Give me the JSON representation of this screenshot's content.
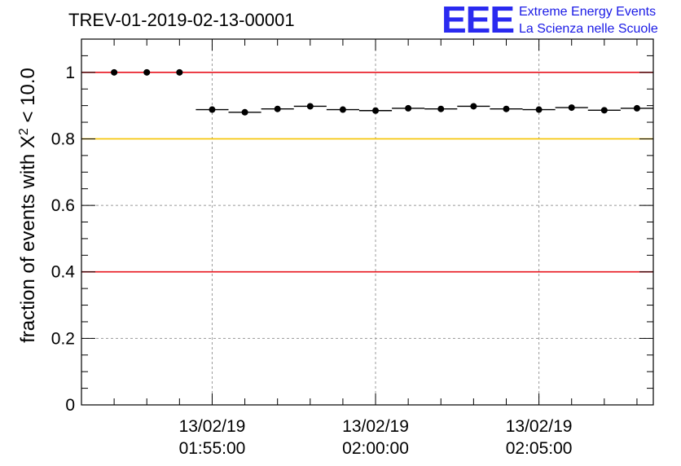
{
  "chart_data": {
    "type": "scatter",
    "title": "TREV-01-2019-02-13-00001",
    "ylabel_prefix": "fraction of events with ",
    "ylabel_symbol": "X",
    "ylabel_sup": "2",
    "ylabel_suffix": " < 10.0",
    "xlabel": "",
    "xlim": [
      "01:51:00",
      "02:08:30"
    ],
    "ylim": [
      0,
      1.1
    ],
    "grid": true,
    "x_ticks": [
      {
        "date": "13/02/19",
        "time": "01:55:00"
      },
      {
        "date": "13/02/19",
        "time": "02:00:00"
      },
      {
        "date": "13/02/19",
        "time": "02:05:00"
      }
    ],
    "y_ticks": [
      "0",
      "0.2",
      "0.4",
      "0.6",
      "0.8",
      "1"
    ],
    "reference_lines": [
      {
        "y": 1.0,
        "color": "#e8141e"
      },
      {
        "y": 0.8,
        "color": "#f5c400"
      },
      {
        "y": 0.4,
        "color": "#e8141e"
      }
    ],
    "series": [
      {
        "x": [
          "01:52:00",
          "01:53:00",
          "01:54:00",
          "01:55:00",
          "01:56:00",
          "01:57:00",
          "01:58:00",
          "01:59:00",
          "02:00:00",
          "02:01:00",
          "02:02:00",
          "02:03:00",
          "02:04:00",
          "02:05:00",
          "02:06:00",
          "02:07:00",
          "02:08:00"
        ],
        "y": [
          1.0,
          1.0,
          1.0,
          0.888,
          0.88,
          0.89,
          0.898,
          0.888,
          0.885,
          0.892,
          0.89,
          0.898,
          0.89,
          0.888,
          0.894,
          0.886,
          0.892
        ],
        "x_half_width_min": [
          0,
          0,
          0,
          0.5,
          0.5,
          0.5,
          0.5,
          0.5,
          0.5,
          0.5,
          0.5,
          0.5,
          0.5,
          0.5,
          0.5,
          0.5,
          0.5
        ],
        "color": "#000000"
      }
    ]
  },
  "logo": {
    "letters": "EEE",
    "line1": "Extreme Energy Events",
    "line2": "La Scienza nelle Scuole",
    "color": "#1a1ae6"
  }
}
